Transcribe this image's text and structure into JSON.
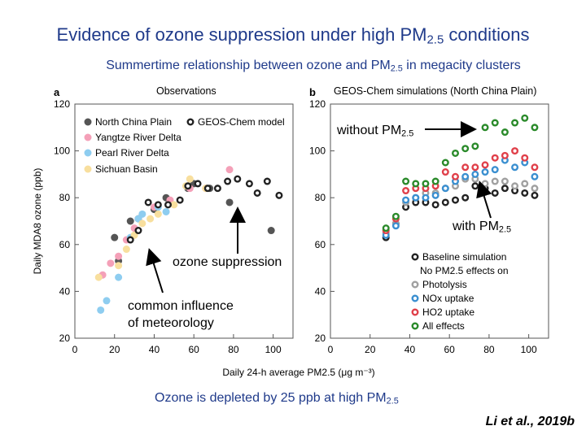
{
  "slide": {
    "title": "Evidence of ozone suppression under high PM",
    "title_sub": "2.5",
    "title_end": " conditions",
    "subtitle": "Summertime relationship between ozone and PM",
    "subtitle_sub": "2.5",
    "subtitle_end": " in megacity clusters",
    "takeaway": "Ozone is depleted by 25 ppb at high PM",
    "takeaway_sub": "2.5",
    "citation": "Li et al., 2019b"
  },
  "annotations": {
    "without_pm": "without PM",
    "without_pm_sub": "2.5",
    "with_pm": "with PM",
    "with_pm_sub": "2.5",
    "ozone_suppression": "ozone suppression",
    "common_influence_line1": "common influence",
    "common_influence_line2": "of meteorology"
  },
  "colors": {
    "heading": "#1f3a8a",
    "north_china": "#555555",
    "yangtze": "#f4a0b8",
    "pearl": "#8ecdf0",
    "sichuan": "#f8df9e",
    "baseline": "#222222",
    "photolysis": "#a0a0a0",
    "nox": "#3a8fd0",
    "ho2": "#e0404a",
    "all": "#2a8a2a"
  },
  "chart_data": [
    {
      "type": "scatter",
      "panel_letter": "a",
      "title": "Observations",
      "xlabel": "Daily 24-h average PM2.5 (μg m⁻³)",
      "ylabel": "Daily MDA8 ozone (ppb)",
      "xlim": [
        0,
        110
      ],
      "ylim": [
        20,
        120
      ],
      "xticks": [
        0,
        20,
        40,
        60,
        80,
        100
      ],
      "yticks": [
        20,
        40,
        60,
        80,
        100,
        120
      ],
      "legend": [
        "North China Plain",
        "GEOS-Chem model",
        "Yangtze River Delta",
        "Pearl River Delta",
        "Sichuan Basin"
      ],
      "legend_position": "top-left",
      "series": [
        {
          "name": "North China Plain",
          "marker": "filled",
          "colorKey": "north_china",
          "points": [
            [
              20,
              63
            ],
            [
              22,
              53
            ],
            [
              28,
              70
            ],
            [
              32,
              71
            ],
            [
              40,
              75
            ],
            [
              46,
              80
            ],
            [
              57,
              84
            ],
            [
              60,
              86
            ],
            [
              68,
              84
            ],
            [
              78,
              78
            ],
            [
              99,
              66
            ]
          ]
        },
        {
          "name": "Yangtze River Delta",
          "marker": "filled",
          "colorKey": "yangtze",
          "points": [
            [
              14,
              47
            ],
            [
              18,
              52
            ],
            [
              22,
              55
            ],
            [
              26,
              62
            ],
            [
              30,
              67
            ],
            [
              40,
              76
            ],
            [
              48,
              79
            ],
            [
              58,
              84
            ],
            [
              66,
              84
            ],
            [
              78,
              92
            ]
          ]
        },
        {
          "name": "Pearl River Delta",
          "marker": "filled",
          "colorKey": "pearl",
          "points": [
            [
              13,
              32
            ],
            [
              16,
              36
            ],
            [
              22,
              46
            ],
            [
              28,
              63
            ],
            [
              32,
              71
            ],
            [
              34,
              73
            ],
            [
              42,
              76
            ],
            [
              46,
              74
            ]
          ]
        },
        {
          "name": "Sichuan Basin",
          "marker": "filled",
          "colorKey": "sichuan",
          "points": [
            [
              12,
              46
            ],
            [
              22,
              51
            ],
            [
              26,
              58
            ],
            [
              30,
              64
            ],
            [
              34,
              69
            ],
            [
              38,
              71
            ],
            [
              42,
              73
            ],
            [
              50,
              77
            ],
            [
              56,
              85
            ],
            [
              58,
              88
            ],
            [
              66,
              84
            ]
          ]
        },
        {
          "name": "GEOS-Chem model",
          "marker": "open",
          "colorKey": "baseline",
          "points": [
            [
              28,
              62
            ],
            [
              32,
              66
            ],
            [
              37,
              78
            ],
            [
              42,
              77
            ],
            [
              47,
              77
            ],
            [
              53,
              79
            ],
            [
              57,
              85
            ],
            [
              62,
              86
            ],
            [
              67,
              84
            ],
            [
              72,
              84
            ],
            [
              77,
              87
            ],
            [
              82,
              88
            ],
            [
              88,
              86
            ],
            [
              92,
              82
            ],
            [
              97,
              87
            ],
            [
              103,
              81
            ]
          ]
        }
      ]
    },
    {
      "type": "scatter",
      "panel_letter": "b",
      "title": "GEOS-Chem simulations (North China Plain)",
      "xlabel": "Daily 24-h average PM2.5 (μg m⁻³)",
      "ylabel": "",
      "xlim": [
        0,
        110
      ],
      "ylim": [
        20,
        120
      ],
      "xticks": [
        0,
        20,
        40,
        60,
        80,
        100
      ],
      "yticks": [
        20,
        40,
        60,
        80,
        100,
        120
      ],
      "legend_title": "Baseline simulation",
      "legend_subtitle": "No PM2.5 effects on",
      "legend": [
        "Baseline simulation",
        "Photolysis",
        "NOx uptake",
        "HO2 uptake",
        "All effects"
      ],
      "legend_position": "bottom-right",
      "series": [
        {
          "name": "Baseline simulation",
          "marker": "open",
          "colorKey": "baseline",
          "x": [
            28,
            33,
            38,
            43,
            48,
            53,
            58,
            63,
            68,
            73,
            78,
            83,
            88,
            93,
            98,
            103
          ],
          "y": [
            63,
            69,
            76,
            78,
            78,
            77,
            78,
            79,
            80,
            85,
            84,
            82,
            84,
            83,
            82,
            81
          ]
        },
        {
          "name": "Photolysis",
          "marker": "open",
          "colorKey": "photolysis",
          "x": [
            28,
            33,
            38,
            43,
            48,
            53,
            58,
            63,
            68,
            73,
            78,
            83,
            88,
            93,
            98,
            103
          ],
          "y": [
            65,
            69,
            78,
            80,
            82,
            82,
            84,
            85,
            88,
            88,
            86,
            87,
            87,
            85,
            86,
            84
          ]
        },
        {
          "name": "NOx uptake",
          "marker": "open",
          "colorKey": "nox",
          "x": [
            28,
            33,
            38,
            43,
            48,
            53,
            58,
            63,
            68,
            73,
            78,
            83,
            88,
            93,
            98,
            103
          ],
          "y": [
            64,
            68,
            79,
            80,
            80,
            81,
            84,
            87,
            89,
            90,
            91,
            92,
            96,
            93,
            95,
            89
          ]
        },
        {
          "name": "HO2 uptake",
          "marker": "open",
          "colorKey": "ho2",
          "x": [
            28,
            33,
            38,
            43,
            48,
            53,
            58,
            63,
            68,
            73,
            78,
            83,
            88,
            93,
            98,
            103
          ],
          "y": [
            66,
            71,
            83,
            84,
            84,
            85,
            91,
            89,
            93,
            93,
            94,
            97,
            98,
            100,
            97,
            93
          ]
        },
        {
          "name": "All effects",
          "marker": "open",
          "colorKey": "all",
          "x": [
            28,
            33,
            38,
            43,
            48,
            53,
            58,
            63,
            68,
            73,
            78,
            83,
            88,
            93,
            98,
            103
          ],
          "y": [
            67,
            72,
            87,
            86,
            86,
            87,
            95,
            99,
            101,
            102,
            110,
            112,
            108,
            112,
            114,
            110
          ]
        }
      ]
    }
  ]
}
